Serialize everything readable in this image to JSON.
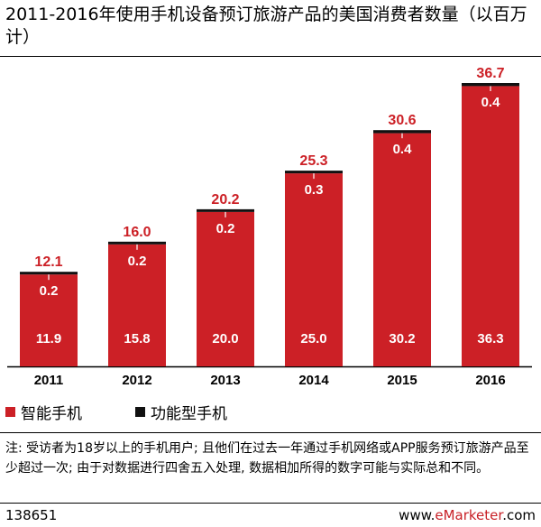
{
  "header": {
    "title": "2011-2016年使用手机设备预订旅游产品的美国消费者数量（以百万计）"
  },
  "colors": {
    "smartphone": "#cc2026",
    "feature_phone": "#111111",
    "brand": "#c82127"
  },
  "chart_data": {
    "type": "bar",
    "stacked": true,
    "categories": [
      "2011",
      "2012",
      "2013",
      "2014",
      "2015",
      "2016"
    ],
    "series": [
      {
        "name": "智能手机",
        "values": [
          11.9,
          15.8,
          20.0,
          25.0,
          30.2,
          36.3
        ],
        "labels": [
          "11.9",
          "15.8",
          "20.0",
          "25.0",
          "30.2",
          "36.3"
        ]
      },
      {
        "name": "功能型手机",
        "values": [
          0.2,
          0.2,
          0.2,
          0.3,
          0.4,
          0.4
        ],
        "labels": [
          "0.2",
          "0.2",
          "0.2",
          "0.3",
          "0.4",
          "0.4"
        ]
      }
    ],
    "totals": [
      "12.1",
      "16.0",
      "20.2",
      "25.3",
      "30.6",
      "36.7"
    ],
    "ylim": [
      0,
      36.7
    ],
    "grid": false,
    "legend_position": "bottom-left"
  },
  "note": "注: 受访者为18岁以上的手机用户; 且他们在过去一年通过手机网络或APP服务预订旅游产品至少超过一次; 由于对数据进行四舍五入处理, 数据相加所得的数字可能与实际总和不同。",
  "footer": {
    "chart_id": "138651",
    "source_prefix": "www.",
    "source_brand": "eMarketer",
    "source_suffix": ".com"
  }
}
